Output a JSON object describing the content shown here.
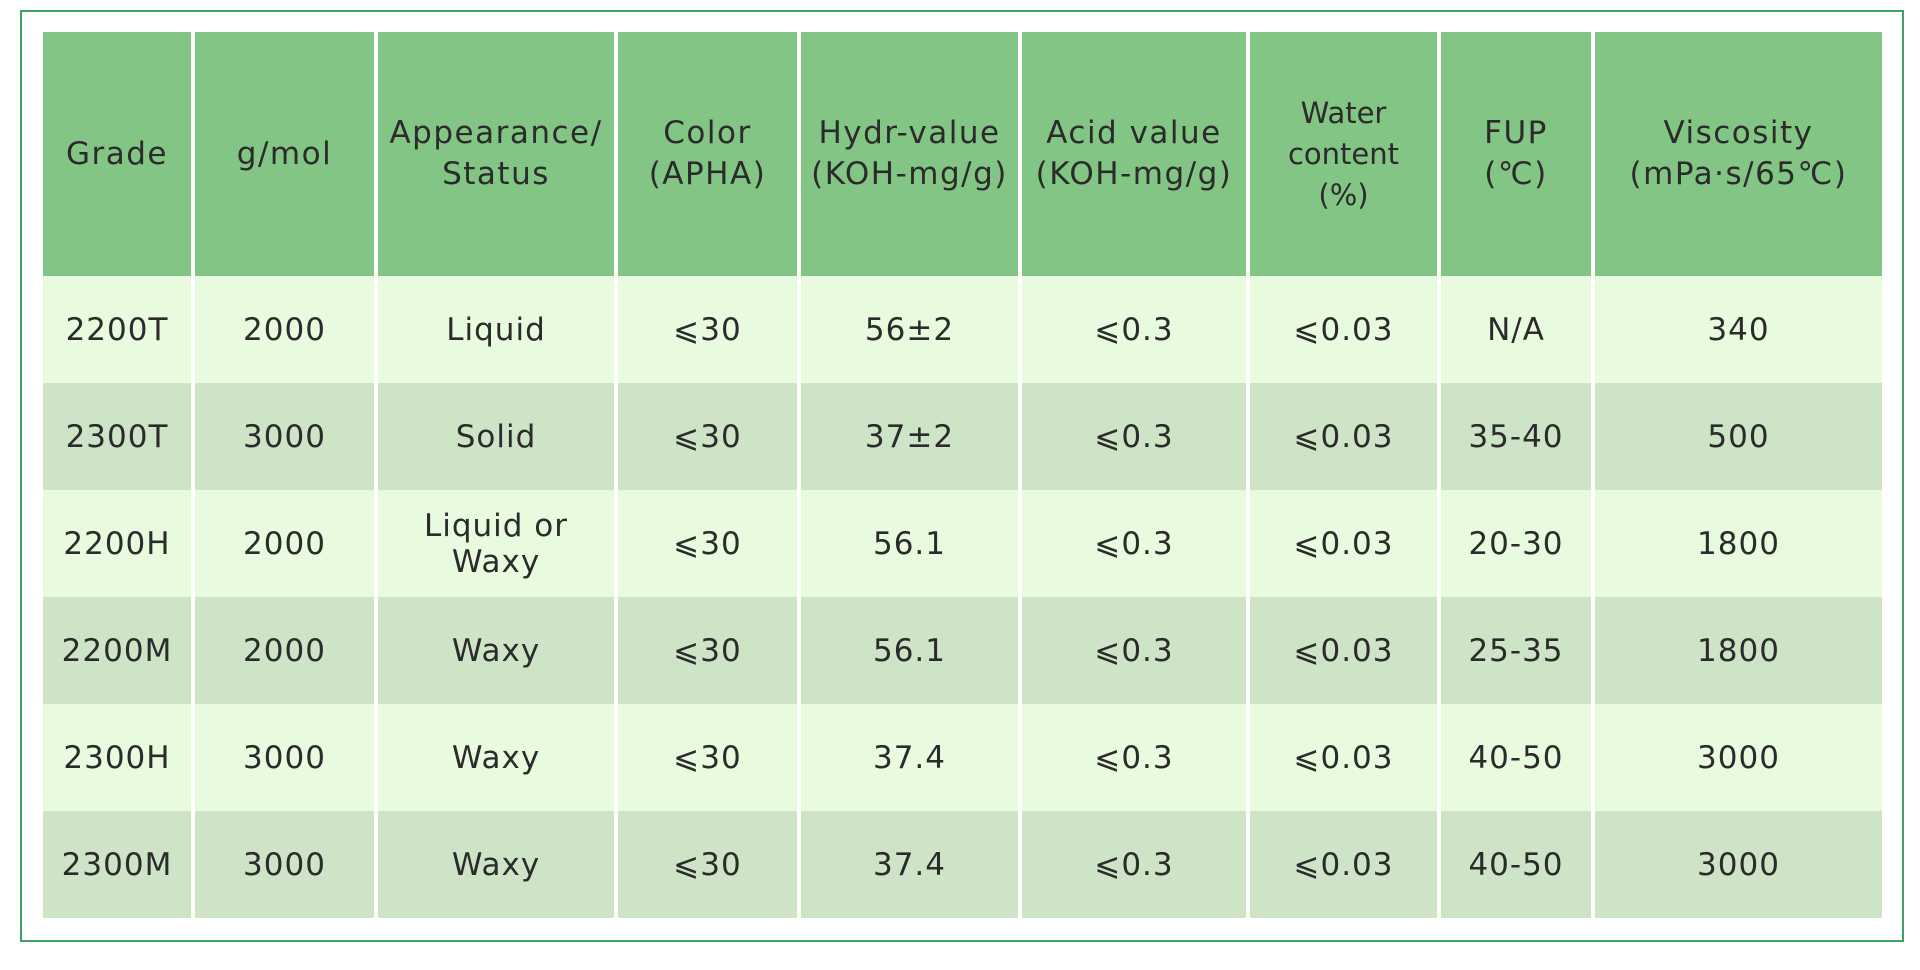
{
  "colors": {
    "header_bg": "#83c584",
    "row_light": "#e8fbdf",
    "row_dark": "#cde5c6",
    "frame_border": "#3fa365",
    "text": "#2b2b2b"
  },
  "table": {
    "headers": [
      [
        "Grade"
      ],
      [
        "g/mol"
      ],
      [
        "Appearance/",
        "Status"
      ],
      [
        "Color",
        "(APHA)"
      ],
      [
        "Hydr-value",
        "(KOH-mg/g)"
      ],
      [
        "Acid value",
        "(KOH-mg/g)"
      ],
      [
        "Water",
        "content",
        "(%)"
      ],
      [
        "FUP",
        "(℃)"
      ],
      [
        "Viscosity",
        "(mPa·s/65℃)"
      ]
    ],
    "rows": [
      [
        "2200T",
        "2000",
        "Liquid",
        "⩽30",
        "56±2",
        "⩽0.3",
        "⩽0.03",
        "N/A",
        "340"
      ],
      [
        "2300T",
        "3000",
        "Solid",
        "⩽30",
        "37±2",
        "⩽0.3",
        "⩽0.03",
        "35-40",
        "500"
      ],
      [
        "2200H",
        "2000",
        "Liquid or Waxy",
        "⩽30",
        "56.1",
        "⩽0.3",
        "⩽0.03",
        "20-30",
        "1800"
      ],
      [
        "2200M",
        "2000",
        "Waxy",
        "⩽30",
        "56.1",
        "⩽0.3",
        "⩽0.03",
        "25-35",
        "1800"
      ],
      [
        "2300H",
        "3000",
        "Waxy",
        "⩽30",
        "37.4",
        "⩽0.3",
        "⩽0.03",
        "40-50",
        "3000"
      ],
      [
        "2300M",
        "3000",
        "Waxy",
        "⩽30",
        "37.4",
        "⩽0.3",
        "⩽0.03",
        "40-50",
        "3000"
      ]
    ]
  }
}
